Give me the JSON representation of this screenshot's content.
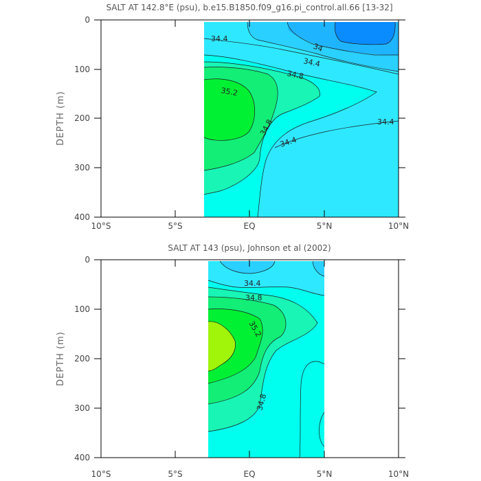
{
  "chart_data": [
    {
      "type": "contour",
      "title": "SALT AT 142.8°E (psu), b.e15.B1850.f09_g16.pi_control.all.66 [13-32]",
      "ylabel": "DEPTH (m)",
      "xlabel": "",
      "xlim": [
        -10,
        10
      ],
      "ylim": [
        400,
        0
      ],
      "x_ticks": [
        -10,
        -5,
        0,
        5,
        10
      ],
      "x_tick_labels": [
        "10°S",
        "5°S",
        "EQ",
        "5°N",
        "10°N"
      ],
      "y_ticks": [
        0,
        100,
        200,
        300,
        400
      ],
      "y_tick_labels": [
        "0",
        "100",
        "200",
        "300",
        "400"
      ],
      "data_extent_x": [
        -3.0,
        10.0
      ],
      "levels": [
        33.8,
        34.0,
        34.2,
        34.4,
        34.6,
        34.8,
        35.0,
        35.2
      ],
      "level_colors": [
        "#0a8cff",
        "#1fb4ff",
        "#2ad0ff",
        "#2ee8ff",
        "#00ffee",
        "#18f5b5",
        "#12ee76",
        "#00f034"
      ],
      "contour_labels": [
        {
          "text": "34.4",
          "x": 2.0,
          "y": 38
        },
        {
          "text": "34",
          "x": 4.6,
          "y": 52
        },
        {
          "text": "34.4",
          "x": 4.3,
          "y": 82
        },
        {
          "text": "34.8",
          "x": 3.4,
          "y": 106
        },
        {
          "text": "35.2",
          "x": -1.5,
          "y": 140
        },
        {
          "text": "34.8",
          "x": 1.7,
          "y": 218
        },
        {
          "text": "34.4",
          "x": 3.3,
          "y": 248
        },
        {
          "text": "34.4",
          "x": 9.3,
          "y": 206
        }
      ]
    },
    {
      "type": "contour",
      "title": "SALT AT 143 (psu), Johnson et al (2002)",
      "ylabel": "DEPTH (m)",
      "xlabel": "",
      "xlim": [
        -10,
        10
      ],
      "ylim": [
        400,
        0
      ],
      "x_ticks": [
        -10,
        -5,
        0,
        5,
        10
      ],
      "x_tick_labels": [
        "10°S",
        "5°S",
        "EQ",
        "5°N",
        "10°N"
      ],
      "y_ticks": [
        0,
        100,
        200,
        300,
        400
      ],
      "y_tick_labels": [
        "0",
        "100",
        "200",
        "300",
        "400"
      ],
      "data_extent_x": [
        -2.75,
        5.0
      ],
      "levels": [
        34.2,
        34.4,
        34.6,
        34.8,
        35.0,
        35.2,
        35.4
      ],
      "level_colors": [
        "#2ad0ff",
        "#2ee8ff",
        "#00ffee",
        "#18f5b5",
        "#12ee76",
        "#00f034",
        "#a0f50a"
      ],
      "contour_labels": [
        {
          "text": "34.4",
          "x": 1.0,
          "y": 42
        },
        {
          "text": "34.8",
          "x": 1.1,
          "y": 78
        },
        {
          "text": "35.2",
          "x": 0.7,
          "y": 138
        },
        {
          "text": "34.8",
          "x": 1.2,
          "y": 278
        }
      ]
    }
  ]
}
